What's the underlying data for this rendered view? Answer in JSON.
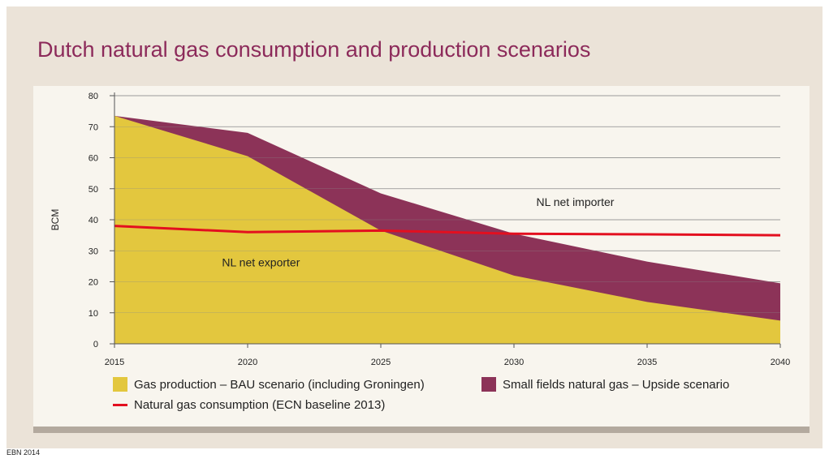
{
  "title": "Dutch natural gas consumption and production scenarios",
  "source": "EBN 2014",
  "colors": {
    "production": "#e3c73e",
    "small_fields": "#8c3358",
    "consumption": "#e30f1f",
    "title": "#8c2a5a",
    "grid": "#8a8a8a"
  },
  "legend": {
    "production": "Gas production – BAU scenario (including Groningen)",
    "small_fields": "Small fields natural gas – Upside scenario",
    "consumption": "Natural gas consumption (ECN baseline 2013)"
  },
  "chart_data": {
    "type": "area",
    "ylabel": "BCM",
    "ylim": [
      0,
      80
    ],
    "yticks": [
      0,
      10,
      20,
      30,
      40,
      50,
      60,
      70,
      80
    ],
    "x": [
      2015,
      2020,
      2025,
      2030,
      2035,
      2040
    ],
    "xtick_labels": [
      "2015",
      "2020",
      "2025",
      "2030",
      "2035",
      "2040"
    ],
    "grid": true,
    "legend_position": "bottom",
    "series": [
      {
        "name": "Gas production – BAU scenario (including Groningen)",
        "kind": "area",
        "key": "production",
        "values": [
          73.5,
          60.5,
          36.5,
          22,
          13.5,
          7.5
        ]
      },
      {
        "name": "Small fields natural gas – Upside scenario",
        "kind": "area",
        "key": "small_fields",
        "values": [
          73.5,
          68,
          48.5,
          35.5,
          26.5,
          19.5
        ]
      },
      {
        "name": "Natural gas consumption (ECN baseline 2013)",
        "kind": "line",
        "key": "consumption",
        "values": [
          38,
          36,
          36.5,
          35.5,
          35.3,
          35
        ]
      }
    ],
    "annotations": [
      {
        "text": "NL net importer",
        "x": 2032.3,
        "y": 44.5
      },
      {
        "text": "NL net exporter",
        "x": 2020.5,
        "y": 25
      }
    ]
  }
}
